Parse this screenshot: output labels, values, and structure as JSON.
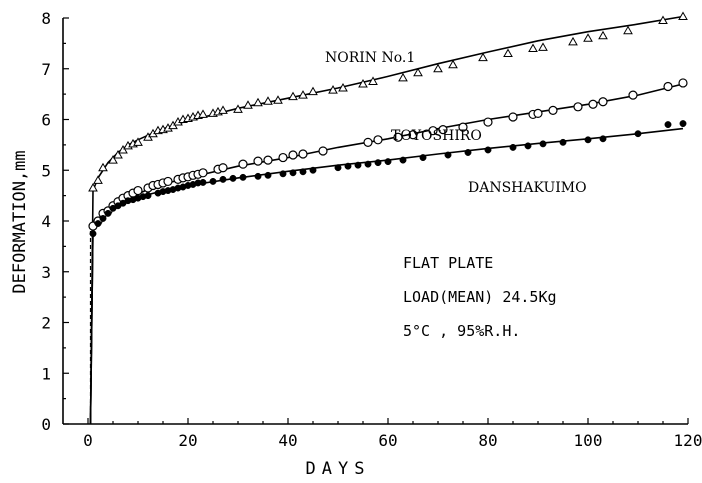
{
  "chart_data": {
    "type": "scatter",
    "title": "",
    "xlabel": "DAYS",
    "ylabel": "DEFORMATION,mm",
    "xlim": [
      -5,
      120
    ],
    "ylim": [
      0,
      8
    ],
    "xticks": [
      0,
      20,
      40,
      60,
      80,
      100,
      120
    ],
    "yticks": [
      0,
      1,
      2,
      3,
      4,
      5,
      6,
      7,
      8
    ],
    "notes": [
      "FLAT PLATE",
      "LOAD(MEAN) 24.5Kg",
      "5°C , 95%R.H."
    ],
    "series": [
      {
        "name": "NORIN No.1",
        "marker": "triangle",
        "line": [
          [
            1,
            4.6
          ],
          [
            2,
            4.85
          ],
          [
            4,
            5.15
          ],
          [
            6,
            5.35
          ],
          [
            8,
            5.5
          ],
          [
            10,
            5.6
          ],
          [
            14,
            5.78
          ],
          [
            18,
            5.92
          ],
          [
            22,
            6.02
          ],
          [
            26,
            6.12
          ],
          [
            30,
            6.22
          ],
          [
            40,
            6.42
          ],
          [
            50,
            6.62
          ],
          [
            60,
            6.85
          ],
          [
            70,
            7.1
          ],
          [
            80,
            7.33
          ],
          [
            90,
            7.55
          ],
          [
            100,
            7.73
          ],
          [
            110,
            7.88
          ],
          [
            119,
            8.03
          ]
        ],
        "x": [
          1,
          2,
          3,
          5,
          6,
          7,
          8,
          9,
          10,
          12,
          13,
          14,
          15,
          16,
          17,
          18,
          19,
          20,
          21,
          22,
          23,
          25,
          26,
          27,
          30,
          32,
          34,
          36,
          38,
          41,
          43,
          45,
          49,
          51,
          55,
          57,
          63,
          66,
          70,
          73,
          79,
          84,
          89,
          91,
          97,
          100,
          103,
          108,
          115,
          119
        ],
        "y": [
          4.65,
          4.8,
          5.05,
          5.2,
          5.3,
          5.4,
          5.48,
          5.52,
          5.55,
          5.65,
          5.72,
          5.78,
          5.8,
          5.83,
          5.88,
          5.95,
          6.0,
          6.02,
          6.05,
          6.08,
          6.1,
          6.12,
          6.15,
          6.18,
          6.2,
          6.28,
          6.33,
          6.36,
          6.38,
          6.45,
          6.48,
          6.55,
          6.58,
          6.62,
          6.7,
          6.75,
          6.82,
          6.92,
          7.0,
          7.08,
          7.22,
          7.3,
          7.4,
          7.42,
          7.53,
          7.6,
          7.65,
          7.75,
          7.95,
          8.03
        ]
      },
      {
        "name": "TOYOSHIRO",
        "marker": "circle-open",
        "line": [
          [
            1,
            3.9
          ],
          [
            2,
            4.05
          ],
          [
            4,
            4.22
          ],
          [
            8,
            4.45
          ],
          [
            12,
            4.62
          ],
          [
            16,
            4.75
          ],
          [
            20,
            4.85
          ],
          [
            30,
            5.08
          ],
          [
            40,
            5.25
          ],
          [
            50,
            5.45
          ],
          [
            60,
            5.62
          ],
          [
            70,
            5.82
          ],
          [
            80,
            6.0
          ],
          [
            90,
            6.15
          ],
          [
            100,
            6.3
          ],
          [
            110,
            6.48
          ],
          [
            119,
            6.7
          ]
        ],
        "x": [
          1,
          2,
          3,
          4,
          5,
          6,
          7,
          8,
          9,
          10,
          12,
          13,
          14,
          15,
          16,
          18,
          19,
          20,
          21,
          22,
          23,
          26,
          27,
          31,
          34,
          36,
          39,
          41,
          43,
          47,
          56,
          58,
          62,
          65,
          69,
          71,
          75,
          80,
          85,
          89,
          90,
          93,
          98,
          101,
          103,
          109,
          116,
          119
        ],
        "y": [
          3.9,
          4.0,
          4.15,
          4.2,
          4.3,
          4.38,
          4.45,
          4.5,
          4.55,
          4.6,
          4.65,
          4.7,
          4.72,
          4.75,
          4.78,
          4.82,
          4.85,
          4.87,
          4.9,
          4.92,
          4.95,
          5.02,
          5.05,
          5.12,
          5.18,
          5.2,
          5.25,
          5.3,
          5.32,
          5.38,
          5.55,
          5.6,
          5.65,
          5.7,
          5.78,
          5.8,
          5.85,
          5.95,
          6.05,
          6.1,
          6.12,
          6.18,
          6.25,
          6.3,
          6.35,
          6.48,
          6.65,
          6.72
        ]
      },
      {
        "name": "DANSHAKUIMO",
        "marker": "circle-filled",
        "line": [
          [
            1,
            3.85
          ],
          [
            2,
            4.0
          ],
          [
            4,
            4.2
          ],
          [
            8,
            4.4
          ],
          [
            12,
            4.52
          ],
          [
            16,
            4.62
          ],
          [
            20,
            4.7
          ],
          [
            30,
            4.85
          ],
          [
            40,
            4.98
          ],
          [
            50,
            5.1
          ],
          [
            60,
            5.2
          ],
          [
            70,
            5.32
          ],
          [
            80,
            5.43
          ],
          [
            90,
            5.53
          ],
          [
            100,
            5.62
          ],
          [
            110,
            5.72
          ],
          [
            119,
            5.82
          ]
        ],
        "x": [
          1,
          2,
          3,
          4,
          5,
          6,
          7,
          8,
          9,
          10,
          11,
          12,
          14,
          15,
          16,
          17,
          18,
          19,
          20,
          21,
          22,
          23,
          25,
          27,
          29,
          31,
          34,
          36,
          39,
          41,
          43,
          45,
          50,
          52,
          54,
          56,
          58,
          60,
          63,
          67,
          72,
          76,
          80,
          85,
          88,
          91,
          95,
          100,
          103,
          110,
          116,
          119
        ],
        "y": [
          3.75,
          3.95,
          4.05,
          4.15,
          4.25,
          4.3,
          4.35,
          4.4,
          4.42,
          4.45,
          4.48,
          4.5,
          4.55,
          4.58,
          4.6,
          4.62,
          4.65,
          4.67,
          4.7,
          4.72,
          4.75,
          4.76,
          4.78,
          4.82,
          4.84,
          4.86,
          4.88,
          4.9,
          4.93,
          4.95,
          4.97,
          5.0,
          5.05,
          5.08,
          5.1,
          5.12,
          5.15,
          5.17,
          5.2,
          5.25,
          5.3,
          5.35,
          5.4,
          5.45,
          5.48,
          5.52,
          5.55,
          5.6,
          5.62,
          5.72,
          5.9,
          5.92
        ]
      }
    ]
  }
}
